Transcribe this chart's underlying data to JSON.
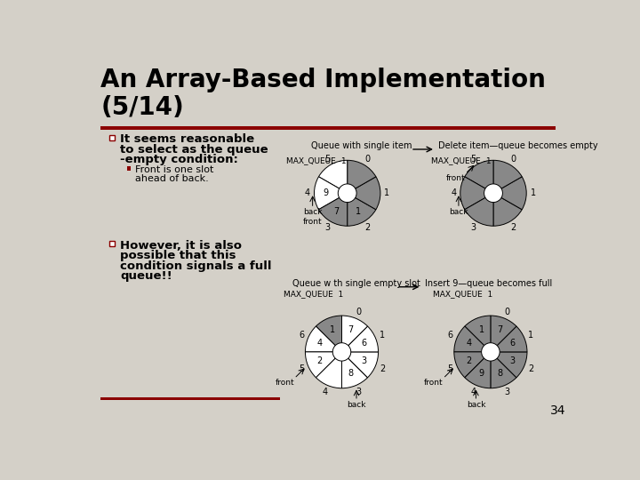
{
  "title_line1": "An Array-Based Implementation",
  "title_line2": "(5/14)",
  "bg_color": "#d4d0c8",
  "title_color": "#000000",
  "red_bar_color": "#8b0000",
  "bullet1_text": [
    "It seems reasonable",
    "to select as the queue",
    "-empty condition:"
  ],
  "sub_bullet1": [
    "Front is one slot",
    "ahead of back."
  ],
  "bullet2_text": [
    "However, it is also",
    "possible that this",
    "condition signals a full",
    "queue!!"
  ],
  "slide_number": "34",
  "top_label_left": "Queue with single item",
  "top_label_right": "Delete item—queue becomes empty",
  "bot_label_left": "Queue w th single empty slot",
  "bot_label_right": "Insert 9—queue becomes full"
}
